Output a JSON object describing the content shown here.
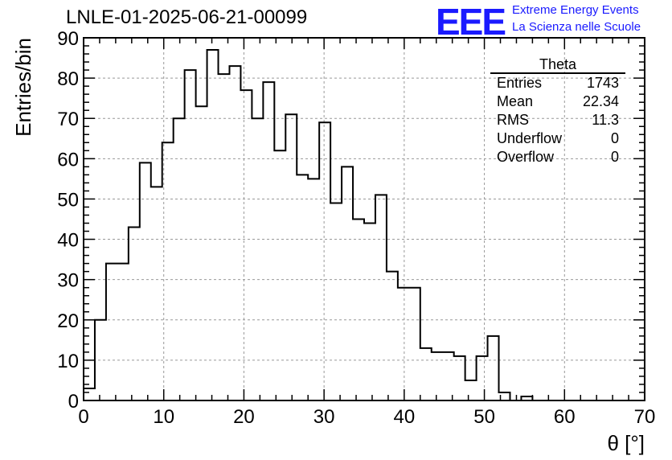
{
  "header": {
    "title": "LNLE-01-2025-06-21-00099",
    "logo": "EEE",
    "brand_line1": "Extreme Energy Events",
    "brand_line2": "La Scienza nelle Scuole",
    "brand_color": "#1a1aff"
  },
  "stats_box": {
    "title": "Theta",
    "rows": [
      {
        "label": "Entries",
        "value": "1743"
      },
      {
        "label": "Mean",
        "value": "22.34"
      },
      {
        "label": "RMS",
        "value": "11.3"
      },
      {
        "label": "Underflow",
        "value": "0"
      },
      {
        "label": "Overflow",
        "value": "0"
      }
    ]
  },
  "chart_data": {
    "type": "bar",
    "histogram": true,
    "title": "LNLE-01-2025-06-21-00099",
    "xlabel": "θ [°]",
    "ylabel": "Entries/bin",
    "xlim": [
      0,
      70
    ],
    "ylim": [
      0,
      90
    ],
    "bin_width": 1.4,
    "x_ticks": [
      "0",
      "10",
      "20",
      "30",
      "40",
      "50",
      "60",
      "70"
    ],
    "y_ticks": [
      "0",
      "10",
      "20",
      "30",
      "40",
      "50",
      "60",
      "70",
      "80",
      "90"
    ],
    "grid": true,
    "bin_edges_start": 0,
    "values": [
      3,
      20,
      34,
      34,
      43,
      59,
      53,
      64,
      70,
      82,
      73,
      87,
      81,
      83,
      77,
      70,
      79,
      62,
      71,
      56,
      55,
      69,
      49,
      58,
      45,
      44,
      51,
      32,
      28,
      28,
      13,
      12,
      12,
      11,
      5,
      11,
      16,
      2,
      0,
      1,
      0,
      0,
      0,
      0,
      0,
      0,
      0,
      0,
      0,
      0
    ]
  }
}
